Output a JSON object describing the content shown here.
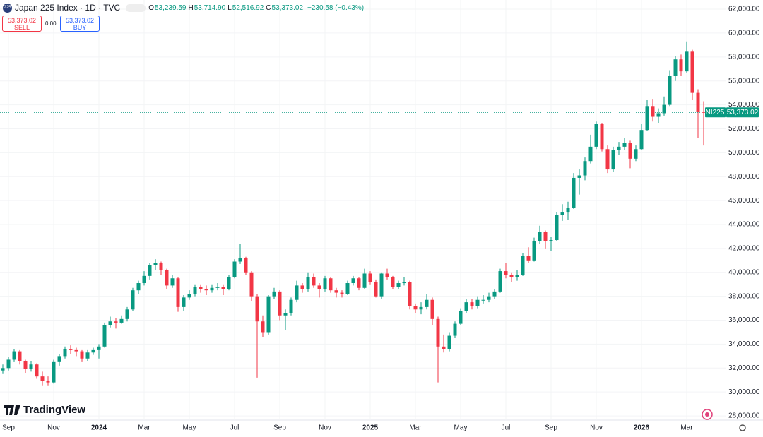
{
  "header": {
    "symbol": "Japan 225 Index · 1D · TVC",
    "icon": "225",
    "ohlc": [
      {
        "k": "O",
        "v": "53,239.59"
      },
      {
        "k": "H",
        "v": "53,714.90"
      },
      {
        "k": "L",
        "v": "52,516.92"
      },
      {
        "k": "C",
        "v": "53,373.02"
      }
    ],
    "change": "−230.58 (−0.43%)",
    "sell_price": "53,373.02",
    "sell": "SELL",
    "spread": "0.00",
    "buy_price": "53,373.02",
    "buy": "BUY",
    "brand": "TradingView"
  },
  "chart_data": {
    "type": "candlestick",
    "up_color": "#089981",
    "down_color": "#f23645",
    "grid": true,
    "symbol_label": "NI225",
    "last_price": 53373.02,
    "last_price_label": "53,373.02",
    "ylim": [
      27650,
      62770
    ],
    "yticks": [
      {
        "value": 28000,
        "label": "28,000.00"
      },
      {
        "value": 30000,
        "label": "30,000.00"
      },
      {
        "value": 32000,
        "label": "32,000.00"
      },
      {
        "value": 34000,
        "label": "34,000.00"
      },
      {
        "value": 36000,
        "label": "36,000.00"
      },
      {
        "value": 38000,
        "label": "38,000.00"
      },
      {
        "value": 40000,
        "label": "40,000.00"
      },
      {
        "value": 42000,
        "label": "42,000.00"
      },
      {
        "value": 44000,
        "label": "44,000.00"
      },
      {
        "value": 46000,
        "label": "46,000.00"
      },
      {
        "value": 48000,
        "label": "48,000.00"
      },
      {
        "value": 50000,
        "label": "50,000.00"
      },
      {
        "value": 52000,
        "label": "52,000.00"
      },
      {
        "value": 54000,
        "label": "54,000.00"
      },
      {
        "value": 56000,
        "label": "56,000.00"
      },
      {
        "value": 58000,
        "label": "58,000.00"
      },
      {
        "value": 60000,
        "label": "60,000.00"
      },
      {
        "value": 62000,
        "label": "62,000.00"
      }
    ],
    "categories": [
      null,
      "Sep",
      null,
      null,
      null,
      null,
      null,
      null,
      null,
      "Nov",
      null,
      null,
      null,
      null,
      null,
      null,
      null,
      "2024",
      null,
      null,
      null,
      null,
      null,
      null,
      null,
      "Mar",
      null,
      null,
      null,
      null,
      null,
      null,
      null,
      "May",
      null,
      null,
      null,
      null,
      null,
      null,
      null,
      "Jul",
      null,
      null,
      null,
      null,
      null,
      null,
      null,
      "Sep",
      null,
      null,
      null,
      null,
      null,
      null,
      null,
      "Nov",
      null,
      null,
      null,
      null,
      null,
      null,
      null,
      "2025",
      null,
      null,
      null,
      null,
      null,
      null,
      null,
      "Mar",
      null,
      null,
      null,
      null,
      null,
      null,
      null,
      "May",
      null,
      null,
      null,
      null,
      null,
      null,
      null,
      "Jul",
      null,
      null,
      null,
      null,
      null,
      null,
      null,
      "Sep",
      null,
      null,
      null,
      null,
      null,
      null,
      null,
      "Nov",
      null,
      null,
      null,
      null,
      null,
      null,
      null,
      "2026",
      null,
      null,
      null,
      null,
      null,
      null,
      null,
      "Mar",
      null,
      null,
      null
    ],
    "open": [
      31800,
      32000,
      32700,
      33400,
      32600,
      31900,
      32300,
      31300,
      30900,
      30800,
      32500,
      33000,
      33600,
      33500,
      33400,
      32800,
      33300,
      33500,
      33800,
      35600,
      35900,
      35800,
      36100,
      36900,
      38500,
      39100,
      39700,
      40600,
      40800,
      40200,
      38900,
      39500,
      37100,
      37900,
      38200,
      38800,
      38600,
      38500,
      38700,
      38800,
      38600,
      39600,
      40900,
      41200,
      40000,
      38000,
      35900,
      35000,
      38000,
      38400,
      36400,
      36600,
      37700,
      38900,
      38600,
      39600,
      38900,
      38600,
      39500,
      38500,
      38300,
      38200,
      39100,
      39500,
      38700,
      39900,
      39200,
      38000,
      39900,
      39600,
      38800,
      39100,
      39200,
      37200,
      36900,
      37100,
      37700,
      36100,
      33800,
      33600,
      34700,
      35700,
      36800,
      37500,
      37200,
      37700,
      37700,
      38000,
      38400,
      40100,
      39800,
      39600,
      39800,
      41400,
      41000,
      42600,
      43400,
      42600,
      42700,
      44800,
      45000,
      45400,
      47900,
      48100,
      49300,
      50500,
      52400,
      50300,
      48600,
      50200,
      50500,
      50800,
      49500,
      50300,
      51900,
      53900,
      53000,
      53300,
      54000,
      56400,
      57800,
      56800,
      58500,
      55000,
      53400
    ],
    "high": [
      32300,
      32900,
      33600,
      33500,
      32700,
      32600,
      32400,
      31700,
      31300,
      32700,
      33200,
      33800,
      33900,
      33700,
      33500,
      33500,
      33700,
      34000,
      35800,
      36300,
      36200,
      36400,
      37100,
      38700,
      39300,
      40100,
      40800,
      41100,
      40900,
      40300,
      39800,
      39600,
      38100,
      38500,
      39000,
      39000,
      38900,
      39000,
      39100,
      39000,
      39800,
      41100,
      42400,
      41300,
      40100,
      38200,
      36400,
      38100,
      38700,
      38500,
      36900,
      37900,
      39300,
      39100,
      40000,
      39900,
      39100,
      39700,
      39600,
      38700,
      38500,
      39300,
      39700,
      39600,
      40300,
      40100,
      39400,
      40000,
      40300,
      39700,
      39300,
      39600,
      39300,
      37400,
      37500,
      38200,
      37900,
      36300,
      34800,
      35000,
      35900,
      37000,
      37800,
      37800,
      38000,
      38100,
      38300,
      38600,
      40300,
      40800,
      40000,
      40200,
      41600,
      42100,
      42900,
      43900,
      43500,
      43000,
      45000,
      45700,
      45900,
      48300,
      48600,
      49600,
      51500,
      52600,
      52500,
      50600,
      50500,
      50900,
      51200,
      51000,
      50600,
      52400,
      54400,
      54500,
      53700,
      54700,
      56900,
      58100,
      58200,
      59300,
      58600,
      55300,
      54300
    ],
    "low": [
      31500,
      31800,
      32500,
      32300,
      31600,
      31700,
      31100,
      30500,
      30500,
      30700,
      32200,
      32800,
      33200,
      33000,
      32500,
      32600,
      33100,
      32800,
      33700,
      35400,
      35300,
      35700,
      35900,
      36800,
      38200,
      38900,
      39400,
      40200,
      39800,
      38600,
      38700,
      36700,
      36800,
      37700,
      38000,
      38300,
      38100,
      38300,
      38500,
      38100,
      38500,
      39500,
      40700,
      39800,
      37600,
      31200,
      34600,
      34800,
      37800,
      36000,
      35200,
      36400,
      37500,
      38300,
      38400,
      38700,
      37900,
      38400,
      38300,
      37900,
      37900,
      38100,
      38900,
      38500,
      38600,
      39000,
      37900,
      37800,
      39400,
      38600,
      38600,
      38900,
      36900,
      36600,
      36500,
      36900,
      35600,
      30800,
      33300,
      33400,
      34500,
      35600,
      36600,
      36900,
      37000,
      37400,
      37500,
      37800,
      38300,
      39500,
      39200,
      39300,
      39700,
      40800,
      40900,
      42400,
      42000,
      41800,
      42600,
      44300,
      44400,
      45300,
      46500,
      47700,
      49100,
      50300,
      50100,
      48300,
      48400,
      49800,
      50200,
      48700,
      49300,
      50200,
      51800,
      52600,
      52500,
      53100,
      53900,
      56000,
      56400,
      56700,
      54400,
      51200,
      50600
    ],
    "close": [
      32000,
      32700,
      33400,
      32600,
      31900,
      32300,
      31300,
      30900,
      30800,
      32500,
      33000,
      33600,
      33500,
      33400,
      32800,
      33300,
      33500,
      33800,
      35600,
      35900,
      35800,
      36100,
      36900,
      38500,
      39100,
      39700,
      40600,
      40800,
      40200,
      38900,
      39500,
      37100,
      37900,
      38200,
      38800,
      38600,
      38500,
      38700,
      38800,
      38600,
      39600,
      40900,
      41200,
      40000,
      38000,
      35900,
      35000,
      38000,
      38400,
      36400,
      36600,
      37700,
      38900,
      38600,
      39600,
      38900,
      38600,
      39500,
      38500,
      38300,
      38200,
      39100,
      39500,
      38700,
      39900,
      39200,
      38000,
      39900,
      39600,
      38800,
      39100,
      39200,
      37200,
      36900,
      37100,
      37700,
      36100,
      33800,
      33600,
      34700,
      35700,
      36800,
      37500,
      37200,
      37700,
      37700,
      38000,
      38400,
      40100,
      39800,
      39600,
      39800,
      41400,
      41000,
      42600,
      43400,
      42600,
      42700,
      44800,
      45000,
      45400,
      47900,
      48100,
      49300,
      50500,
      52400,
      50300,
      48600,
      50200,
      50500,
      50800,
      49500,
      50300,
      51900,
      53900,
      53000,
      53300,
      54000,
      56400,
      57800,
      56800,
      58500,
      55000,
      53400,
      53373.02
    ]
  }
}
